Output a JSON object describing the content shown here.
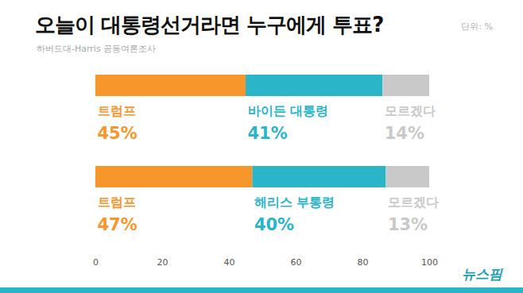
{
  "chart_data": {
    "type": "bar",
    "title": "오늘이 대통령선거라면 누구에게 투표?",
    "subtitle": "하버드대-Harris 공동여론조사",
    "annotations": [
      "단위: %",
      "뉴스핌"
    ],
    "orientation": "horizontal",
    "stacked": true,
    "data_labels": true,
    "tick_labels": "x",
    "grid": false,
    "categories": [
      null,
      null
    ],
    "series": [
      {
        "name": "트럼프",
        "color": "#f7962b",
        "values": [
          45,
          47
        ],
        "value_labels": [
          "45%",
          "47%"
        ]
      },
      {
        "name": "바이든 대통령",
        "color": "#2bb5c9",
        "values": [
          41,
          null
        ],
        "value_labels": [
          "41%",
          null
        ]
      },
      {
        "name": "해리스 부통령",
        "color": "#2bb5c9",
        "values": [
          null,
          40
        ],
        "value_labels": [
          null,
          "40%"
        ]
      },
      {
        "name": "모르겠다",
        "color": "#c9c9c9",
        "values": [
          14,
          13
        ],
        "value_labels": [
          "14%",
          "13%"
        ]
      }
    ],
    "xlim": [
      0,
      100
    ],
    "xticks": [
      0,
      20,
      40,
      60,
      80,
      100
    ]
  }
}
